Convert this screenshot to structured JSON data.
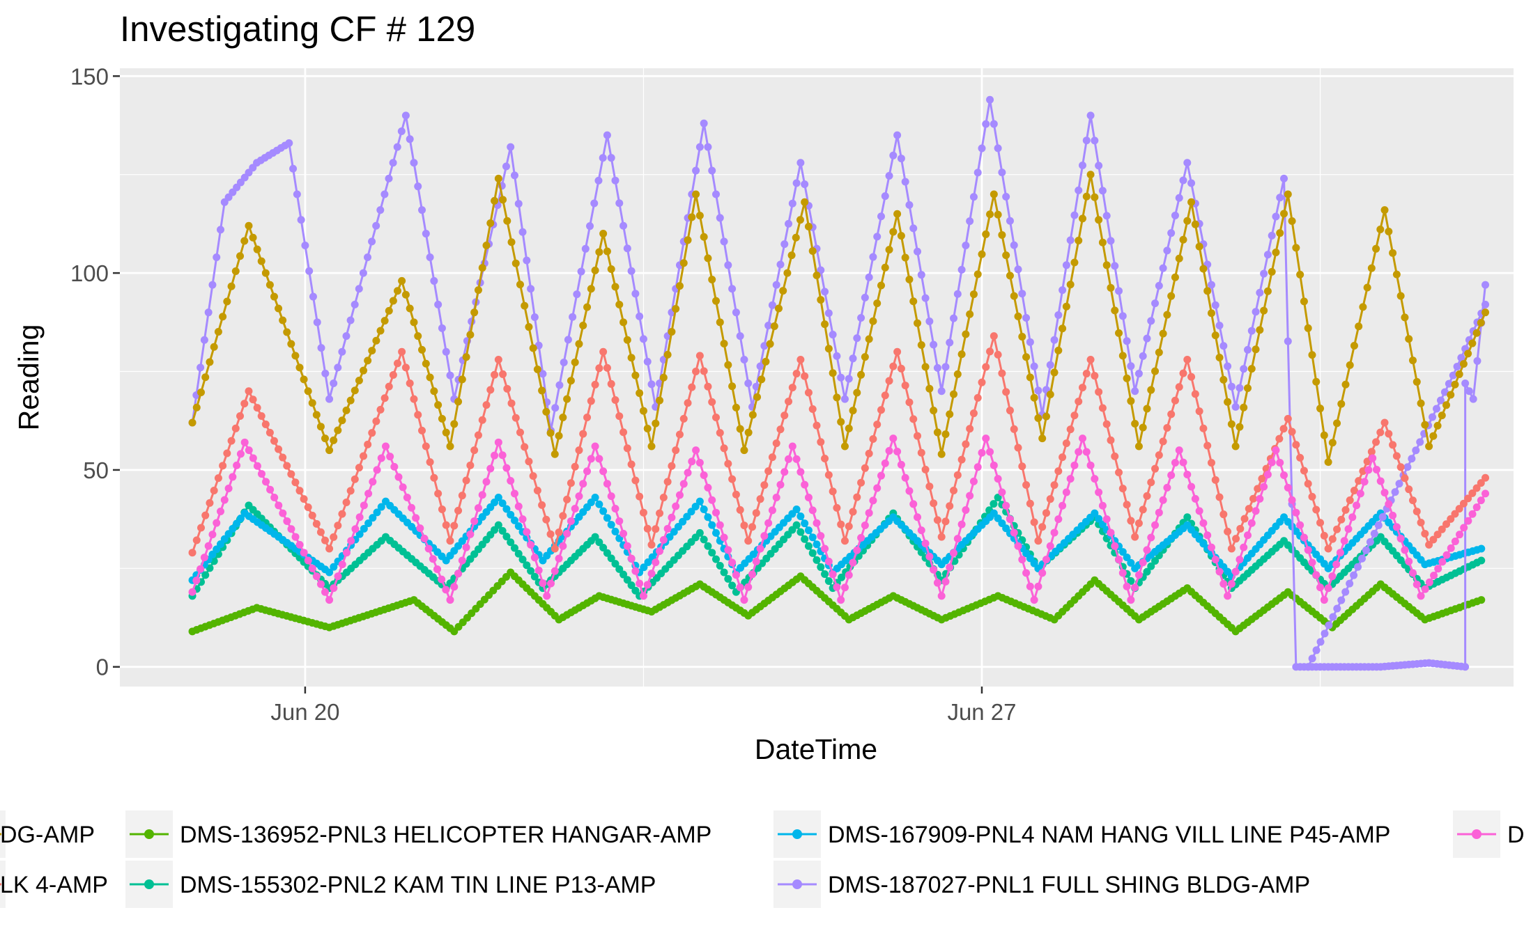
{
  "chart_data": {
    "type": "line",
    "title": "Investigating CF # 129",
    "xlabel": "DateTime",
    "ylabel": "Reading",
    "ylim": [
      -5,
      152
    ],
    "yticks": [
      0,
      50,
      100,
      150
    ],
    "xlim": [
      "2020-06-18T02:00",
      "2020-07-02T12:00"
    ],
    "xticks": [
      {
        "label": "Jun 20",
        "date": "2020-06-20T00:00"
      },
      {
        "label": "Jun 27",
        "date": "2020-06-27T00:00"
      }
    ],
    "x_minor_gridlines": [
      "2020-06-23T12:00",
      "2020-06-30T12:00"
    ],
    "grid": true,
    "legend_position": "bottom",
    "series": [
      {
        "name": "DMS-136952-PNL3 HELICOPTER HANGAR-AMP",
        "color": "#53B400",
        "x": [
          "2020-06-18T20:00",
          "2020-06-19T12:00",
          "2020-06-20T06:00",
          "2020-06-21T03:00",
          "2020-06-21T13:00",
          "2020-06-22T03:00",
          "2020-06-22T15:00",
          "2020-06-23T01:00",
          "2020-06-23T14:00",
          "2020-06-24T02:00",
          "2020-06-24T14:00",
          "2020-06-25T03:00",
          "2020-06-25T15:00",
          "2020-06-26T02:00",
          "2020-06-26T14:00",
          "2020-06-27T04:00",
          "2020-06-27T18:00",
          "2020-06-28T04:00",
          "2020-06-28T15:00",
          "2020-06-29T03:00",
          "2020-06-29T15:00",
          "2020-06-30T04:00",
          "2020-06-30T15:00",
          "2020-07-01T03:00",
          "2020-07-01T14:00",
          "2020-07-02T04:00"
        ],
        "y": [
          9,
          15,
          10,
          17,
          9,
          24,
          12,
          18,
          14,
          21,
          13,
          23,
          12,
          18,
          12,
          18,
          12,
          22,
          12,
          20,
          9,
          19,
          10,
          21,
          12,
          17
        ]
      },
      {
        "name": "DMS-155302-PNL2 KAM TIN LINE P13-AMP",
        "color": "#00C094",
        "x": [
          "2020-06-18T20:00",
          "2020-06-19T10:00",
          "2020-06-20T06:00",
          "2020-06-20T20:00",
          "2020-06-21T11:00",
          "2020-06-22T00:00",
          "2020-06-22T11:00",
          "2020-06-23T00:00",
          "2020-06-23T11:00",
          "2020-06-24T02:00",
          "2020-06-24T11:00",
          "2020-06-25T02:00",
          "2020-06-25T11:00",
          "2020-06-26T02:00",
          "2020-06-26T14:00",
          "2020-06-27T04:00",
          "2020-06-27T14:00",
          "2020-06-28T04:00",
          "2020-06-28T14:00",
          "2020-06-29T03:00",
          "2020-06-29T14:00",
          "2020-06-30T03:00",
          "2020-06-30T14:00",
          "2020-07-01T03:00",
          "2020-07-01T14:00",
          "2020-07-02T04:00"
        ],
        "y": [
          18,
          41,
          20,
          33,
          20,
          36,
          20,
          33,
          18,
          34,
          19,
          36,
          20,
          39,
          22,
          43,
          25,
          38,
          20,
          38,
          20,
          32,
          20,
          33,
          20,
          27
        ]
      },
      {
        "name": "DMS-167909-PNL4 NAM HANG VILL LINE P45-AMP",
        "color": "#00B6EB",
        "x": [
          "2020-06-18T20:00",
          "2020-06-19T09:00",
          "2020-06-20T06:00",
          "2020-06-20T20:00",
          "2020-06-21T11:00",
          "2020-06-22T00:00",
          "2020-06-22T11:00",
          "2020-06-23T00:00",
          "2020-06-23T11:00",
          "2020-06-24T02:00",
          "2020-06-24T11:00",
          "2020-06-25T02:00",
          "2020-06-25T11:00",
          "2020-06-26T02:00",
          "2020-06-26T14:00",
          "2020-06-27T03:00",
          "2020-06-27T14:00",
          "2020-06-28T04:00",
          "2020-06-28T14:00",
          "2020-06-29T03:00",
          "2020-06-29T14:00",
          "2020-06-30T03:00",
          "2020-06-30T14:00",
          "2020-07-01T03:00",
          "2020-07-01T14:00",
          "2020-07-02T04:00"
        ],
        "y": [
          22,
          39,
          24,
          42,
          27,
          43,
          27,
          43,
          24,
          42,
          24,
          40,
          24,
          38,
          26,
          39,
          25,
          39,
          25,
          36,
          23,
          38,
          25,
          39,
          26,
          30
        ]
      },
      {
        "name": "DMS-187027-PNL1 FULL SHING BLDG-AMP",
        "color": "#A58AFF",
        "x": [
          "2020-06-18T20:00",
          "2020-06-19T04:00",
          "2020-06-19T12:00",
          "2020-06-19T20:00",
          "2020-06-20T06:00",
          "2020-06-21T01:00",
          "2020-06-21T13:00",
          "2020-06-22T03:00",
          "2020-06-22T13:00",
          "2020-06-23T03:00",
          "2020-06-23T15:00",
          "2020-06-24T03:00",
          "2020-06-24T15:00",
          "2020-06-25T03:00",
          "2020-06-25T14:00",
          "2020-06-26T03:00",
          "2020-06-26T14:00",
          "2020-06-27T02:00",
          "2020-06-27T15:00",
          "2020-06-28T03:00",
          "2020-06-28T14:00",
          "2020-06-29T03:00",
          "2020-06-29T15:00",
          "2020-06-30T03:00",
          "2020-06-30T06:00",
          "2020-06-30T09:00",
          "2020-06-30T15:00",
          "2020-07-01T03:00",
          "2020-07-01T15:00",
          "2020-07-02T00:00",
          "2020-07-02T00:00",
          "2020-07-02T02:00",
          "2020-07-02T05:00"
        ],
        "y": [
          62,
          118,
          128,
          133,
          68,
          140,
          68,
          132,
          60,
          135,
          66,
          138,
          66,
          128,
          68,
          135,
          70,
          144,
          64,
          140,
          70,
          128,
          66,
          124,
          0,
          0,
          0,
          0,
          1,
          0,
          72,
          68,
          97
        ]
      },
      {
        "name": "DMS-187027-PNL1 FULL SHING BLDG-AMP",
        "color": "#A58AFF",
        "x": [
          "2020-06-30T09:00",
          "2020-07-01T21:00",
          "2020-07-02T05:00"
        ],
        "y": [
          0,
          74,
          92
        ]
      },
      {
        "name": "",
        "color": "#C49A00",
        "x": [
          "2020-06-18T20:00",
          "2020-06-19T10:00",
          "2020-06-20T06:00",
          "2020-06-21T00:00",
          "2020-06-21T12:00",
          "2020-06-22T00:00",
          "2020-06-22T14:00",
          "2020-06-23T02:00",
          "2020-06-23T14:00",
          "2020-06-24T01:00",
          "2020-06-24T13:00",
          "2020-06-25T04:00",
          "2020-06-25T14:00",
          "2020-06-26T03:00",
          "2020-06-26T14:00",
          "2020-06-27T03:00",
          "2020-06-27T15:00",
          "2020-06-28T03:00",
          "2020-06-28T15:00",
          "2020-06-29T04:00",
          "2020-06-29T15:00",
          "2020-06-30T04:00",
          "2020-06-30T14:00",
          "2020-07-01T04:00",
          "2020-07-01T15:00",
          "2020-07-02T05:00"
        ],
        "y": [
          62,
          112,
          55,
          98,
          56,
          124,
          54,
          110,
          56,
          120,
          55,
          118,
          56,
          115,
          54,
          120,
          58,
          125,
          56,
          118,
          56,
          120,
          52,
          116,
          56,
          90
        ]
      },
      {
        "name": "",
        "color": "#F8766D",
        "x": [
          "2020-06-18T20:00",
          "2020-06-19T10:00",
          "2020-06-20T06:00",
          "2020-06-21T00:00",
          "2020-06-21T12:00",
          "2020-06-22T00:00",
          "2020-06-22T14:00",
          "2020-06-23T02:00",
          "2020-06-23T14:00",
          "2020-06-24T02:00",
          "2020-06-24T14:00",
          "2020-06-25T03:00",
          "2020-06-25T14:00",
          "2020-06-26T03:00",
          "2020-06-26T14:00",
          "2020-06-27T03:00",
          "2020-06-27T14:00",
          "2020-06-28T03:00",
          "2020-06-28T14:00",
          "2020-06-29T03:00",
          "2020-06-29T14:00",
          "2020-06-30T04:00",
          "2020-06-30T14:00",
          "2020-07-01T04:00",
          "2020-07-01T15:00",
          "2020-07-02T05:00"
        ],
        "y": [
          29,
          70,
          30,
          80,
          32,
          78,
          30,
          80,
          31,
          79,
          32,
          78,
          32,
          80,
          33,
          84,
          32,
          78,
          33,
          78,
          30,
          63,
          30,
          62,
          31,
          48
        ]
      },
      {
        "name": "",
        "color": "#FB61D7",
        "x": [
          "2020-06-18T20:00",
          "2020-06-19T09:00",
          "2020-06-20T06:00",
          "2020-06-20T20:00",
          "2020-06-21T12:00",
          "2020-06-22T00:00",
          "2020-06-22T12:00",
          "2020-06-23T00:00",
          "2020-06-23T12:00",
          "2020-06-24T01:00",
          "2020-06-24T13:00",
          "2020-06-25T01:00",
          "2020-06-25T13:00",
          "2020-06-26T02:00",
          "2020-06-26T14:00",
          "2020-06-27T01:00",
          "2020-06-27T13:00",
          "2020-06-28T01:00",
          "2020-06-28T13:00",
          "2020-06-29T01:00",
          "2020-06-29T13:00",
          "2020-06-30T01:00",
          "2020-06-30T13:00",
          "2020-07-01T01:00",
          "2020-07-01T13:00",
          "2020-07-02T05:00"
        ],
        "y": [
          19,
          57,
          17,
          56,
          17,
          57,
          18,
          56,
          18,
          55,
          17,
          56,
          17,
          58,
          18,
          58,
          17,
          58,
          17,
          55,
          18,
          55,
          17,
          53,
          18,
          44
        ]
      }
    ]
  },
  "legend": {
    "rows": [
      [
        {
          "label": "DG-AMP",
          "color": "#C49A00",
          "clipped": true
        },
        {
          "label": "DMS-136952-PNL3 HELICOPTER HANGAR-AMP",
          "color": "#53B400"
        },
        {
          "label": "DMS-167909-PNL4 NAM HANG VILL LINE P45-AMP",
          "color": "#00B6EB"
        },
        {
          "label": "D",
          "color": "#FB61D7",
          "clipped": true
        }
      ],
      [
        {
          "label": "LK 4-AMP",
          "color": "#F8766D",
          "clipped": true
        },
        {
          "label": "DMS-155302-PNL2 KAM TIN LINE P13-AMP",
          "color": "#00C094"
        },
        {
          "label": "DMS-187027-PNL1 FULL SHING BLDG-AMP",
          "color": "#A58AFF"
        }
      ]
    ]
  }
}
